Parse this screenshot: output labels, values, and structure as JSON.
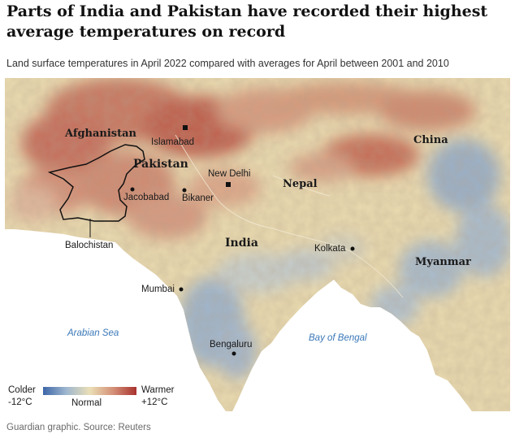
{
  "title": "Parts of India and Pakistan have recorded their highest average temperatures on record",
  "subtitle": "Land surface temperatures in April 2022 compared with averages for April between 2001 and 2010",
  "map": {
    "countries": {
      "afghanistan": "Afghanistan",
      "pakistan": "Pakistan",
      "china": "China",
      "nepal": "Nepal",
      "india": "India",
      "myanmar": "Myanmar"
    },
    "regions": {
      "balochistan": "Balochistan"
    },
    "cities": {
      "islamabad": "Islamabad",
      "new_delhi": "New Delhi",
      "jacobabad": "Jacobabad",
      "bikaner": "Bikaner",
      "kolkata": "Kolkata",
      "mumbai": "Mumbai",
      "bengaluru": "Bengaluru"
    },
    "seas": {
      "arabian_sea": "Arabian Sea",
      "bay_of_bengal": "Bay of Bengal"
    },
    "colors": {
      "cold": "#3d66a8",
      "normal": "#eadfb6",
      "warm": "#a8322f",
      "sea": "#ffffff",
      "sea_label": "#3a78b8"
    }
  },
  "legend": {
    "colder": "Colder",
    "warmer": "Warmer",
    "normal": "Normal",
    "min": "-12°C",
    "max": "+12°C"
  },
  "footer": "Guardian graphic. Source: Reuters"
}
